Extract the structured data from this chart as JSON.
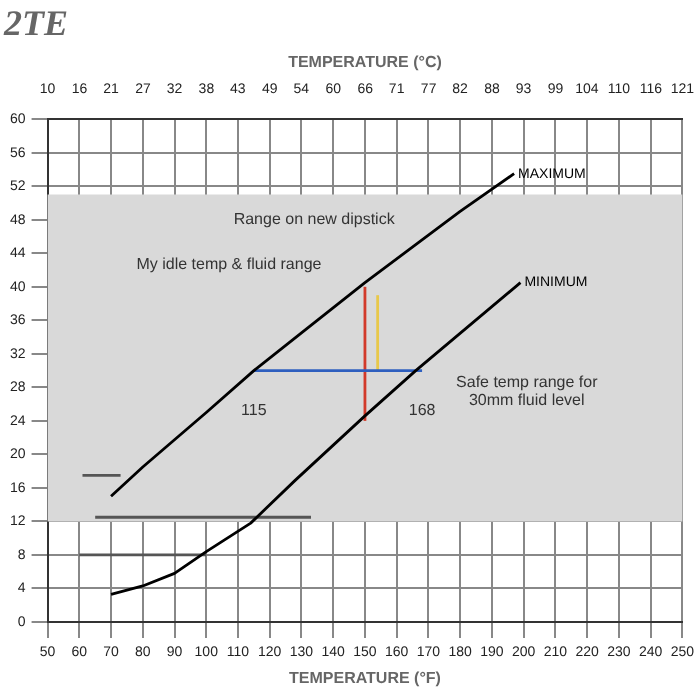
{
  "chart_data": {
    "type": "line",
    "title": "2TE",
    "xlabel": "TEMPERATURE (°F)",
    "x2label": "TEMPERATURE (°C)",
    "xlim": [
      50,
      250
    ],
    "xticks": [
      50,
      60,
      70,
      80,
      90,
      100,
      110,
      120,
      130,
      140,
      150,
      160,
      170,
      180,
      190,
      200,
      210,
      220,
      230,
      240,
      250
    ],
    "x2lim": [
      10,
      121.1
    ],
    "x2ticks": [
      {
        "value": 10,
        "label": "10"
      },
      {
        "value": 15.6,
        "label": "16"
      },
      {
        "value": 21.1,
        "label": "21"
      },
      {
        "value": 26.7,
        "label": "27"
      },
      {
        "value": 32.2,
        "label": "32"
      },
      {
        "value": 37.8,
        "label": "38"
      },
      {
        "value": 43.3,
        "label": "43"
      },
      {
        "value": 48.9,
        "label": "49"
      },
      {
        "value": 54.4,
        "label": "54"
      },
      {
        "value": 60,
        "label": "60"
      },
      {
        "value": 65.6,
        "label": "66"
      },
      {
        "value": 71.1,
        "label": "71"
      },
      {
        "value": 76.7,
        "label": "77"
      },
      {
        "value": 82.2,
        "label": "82"
      },
      {
        "value": 87.8,
        "label": "88"
      },
      {
        "value": 93.3,
        "label": "93"
      },
      {
        "value": 98.9,
        "label": "99"
      },
      {
        "value": 104.4,
        "label": "104"
      },
      {
        "value": 110,
        "label": "110"
      },
      {
        "value": 115.6,
        "label": "116"
      },
      {
        "value": 121.1,
        "label": "121"
      }
    ],
    "ylim": [
      0,
      60
    ],
    "yticks": [
      0,
      4,
      8,
      12,
      16,
      20,
      24,
      28,
      32,
      36,
      40,
      44,
      48,
      52,
      56,
      60
    ],
    "grid": true,
    "legend": false,
    "bands": [
      {
        "axis": "y",
        "from": 12,
        "to": 51,
        "color": "#d9d9d9"
      }
    ],
    "series": [
      {
        "name": "MAXIMUM",
        "color": "#000000",
        "x": [
          70,
          80,
          100,
          115,
          130,
          150,
          180,
          197
        ],
        "values": [
          15,
          18.5,
          25,
          30,
          34.5,
          40.5,
          49,
          53.5
        ]
      },
      {
        "name": "MINIMUM",
        "color": "#000000",
        "x": [
          70,
          80,
          90,
          100,
          114,
          128,
          150,
          166,
          199
        ],
        "values": [
          3.3,
          4.3,
          5.8,
          8.4,
          11.8,
          16.9,
          24.6,
          30,
          40.5
        ]
      },
      {
        "color": "#2e5fbf",
        "x": [
          115,
          168
        ],
        "values": [
          30,
          30
        ]
      },
      {
        "color": "#d23a2a",
        "x": [
          150,
          150
        ],
        "values": [
          24,
          40
        ]
      },
      {
        "color": "#e8c84a",
        "x": [
          154,
          154
        ],
        "values": [
          30,
          39
        ]
      },
      {
        "color": "#555555",
        "x": [
          65,
          133
        ],
        "values": [
          12.5,
          12.5
        ]
      },
      {
        "color": "#555555",
        "x": [
          60,
          100
        ],
        "values": [
          8,
          8
        ]
      },
      {
        "color": "#555555",
        "x": [
          61,
          73
        ],
        "values": [
          17.5,
          17.5
        ]
      }
    ],
    "annotations": [
      "Range on new dipstick",
      {
        "text": "My idle temp & fluid range",
        "x": 150,
        "y": 40
      },
      {
        "text": "Safe temp range for\n30mm fluid level",
        "x": 168,
        "y": 30
      },
      {
        "text": "115",
        "x": 115,
        "y": 30
      },
      {
        "text": "168",
        "x": 168,
        "y": 30
      }
    ]
  }
}
